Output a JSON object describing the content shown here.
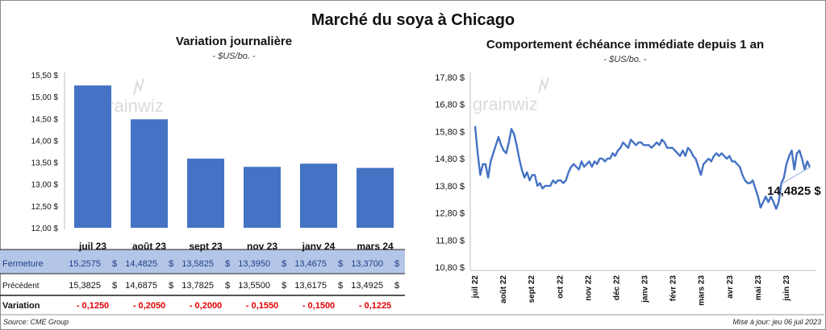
{
  "title": "Marché du soya à Chicago",
  "left": {
    "title": "Variation  journalière",
    "unit": "- $US/bo. -"
  },
  "right": {
    "title": "Comportement  échéance immédiate depuis 1 an",
    "unit": "- $US/bo. -"
  },
  "table": {
    "row_labels": [
      "Fermeture",
      "Précédent",
      "Variation"
    ],
    "currency": "$",
    "fermeture": [
      "15,2575",
      "14,4825",
      "13,5825",
      "13,3950",
      "13,4675",
      "13,3700"
    ],
    "precedent": [
      "15,3825",
      "14,6875",
      "13,7825",
      "13,5500",
      "13,6175",
      "13,4925"
    ],
    "variation": [
      "- 0,1250",
      "- 0,2050",
      "- 0,2000",
      "- 0,1550",
      "- 0,1500",
      "- 0,1225"
    ]
  },
  "footer": {
    "source": "Source: CME Group",
    "updated": "Mise à jour: jeu 06 juil 2023"
  },
  "watermark": "grainwiz",
  "colors": {
    "bar": "#4472c4",
    "line": "#4472c4",
    "table_band": "#b4c6e7",
    "negative": "#e00000"
  },
  "chart_data": [
    {
      "type": "bar",
      "categories": [
        "juil 23",
        "août 23",
        "sept 23",
        "nov 23",
        "janv 24",
        "mars 24"
      ],
      "values": [
        15.2575,
        14.4825,
        13.5825,
        13.395,
        13.4675,
        13.37
      ],
      "ylim": [
        12.0,
        15.5
      ],
      "yticks": [
        "12,00 $",
        "12,50 $",
        "13,00 $",
        "13,50 $",
        "14,00 $",
        "14,50 $",
        "15,00 $",
        "15,50 $"
      ],
      "grid": false
    },
    {
      "type": "line",
      "x_labels": [
        "juil 22",
        "août 22",
        "sept 22",
        "oct 22",
        "nov 22",
        "déc 22",
        "janv 23",
        "févr 23",
        "mars 23",
        "avr 23",
        "mai 23",
        "juin 23"
      ],
      "ylim": [
        10.8,
        17.8
      ],
      "yticks": [
        "10,80 $",
        "11,80 $",
        "12,80 $",
        "13,80 $",
        "14,80 $",
        "15,80 $",
        "16,80 $",
        "17,80 $"
      ],
      "grid": false,
      "last_value_label": "14,4825 $",
      "values": [
        16.0,
        15.0,
        14.2,
        14.6,
        14.6,
        14.1,
        14.7,
        15.0,
        15.3,
        15.6,
        15.3,
        15.1,
        15.0,
        15.4,
        15.9,
        15.7,
        15.3,
        14.8,
        14.4,
        14.1,
        14.3,
        14.0,
        14.2,
        14.2,
        13.8,
        13.9,
        13.7,
        13.8,
        13.8,
        13.8,
        14.0,
        13.9,
        14.0,
        14.0,
        13.9,
        14.0,
        14.3,
        14.5,
        14.6,
        14.5,
        14.4,
        14.7,
        14.5,
        14.6,
        14.7,
        14.5,
        14.7,
        14.6,
        14.8,
        14.8,
        14.7,
        14.8,
        14.8,
        15.0,
        14.9,
        15.1,
        15.2,
        15.4,
        15.3,
        15.2,
        15.5,
        15.4,
        15.3,
        15.4,
        15.4,
        15.3,
        15.3,
        15.3,
        15.2,
        15.3,
        15.4,
        15.3,
        15.5,
        15.4,
        15.2,
        15.2,
        15.2,
        15.1,
        15.0,
        14.9,
        15.1,
        14.9,
        15.2,
        15.1,
        14.9,
        14.8,
        14.5,
        14.2,
        14.6,
        14.7,
        14.8,
        14.7,
        14.9,
        15.0,
        14.9,
        15.0,
        14.9,
        14.8,
        14.9,
        14.7,
        14.7,
        14.6,
        14.5,
        14.2,
        14.0,
        13.9,
        13.9,
        14.0,
        13.7,
        13.4,
        13.0,
        13.2,
        13.4,
        13.2,
        13.4,
        13.2,
        12.95,
        13.2,
        13.9,
        14.1,
        14.6,
        14.9,
        15.1,
        14.4,
        15.0,
        15.1,
        14.8,
        14.4,
        14.7,
        14.4825
      ]
    }
  ]
}
